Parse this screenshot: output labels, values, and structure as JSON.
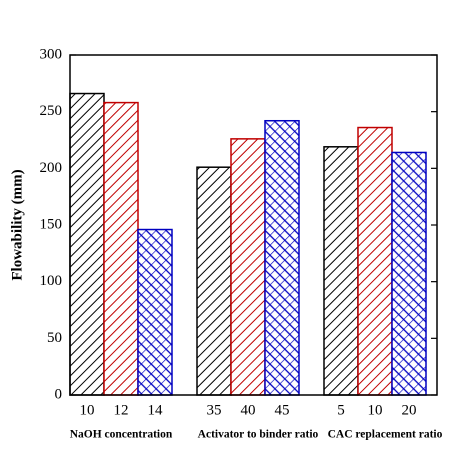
{
  "chart_data": {
    "type": "bar",
    "y_label": "Flowability (mm)",
    "groups": [
      {
        "label": "NaOH concentration",
        "categories": [
          "10",
          "12",
          "14"
        ],
        "values": [
          266,
          258,
          146
        ]
      },
      {
        "label": "Activator to binder ratio",
        "categories": [
          "35",
          "40",
          "45"
        ],
        "values": [
          201,
          226,
          242
        ]
      },
      {
        "label": "CAC replacement ratio",
        "categories": [
          "5",
          "10",
          "20"
        ],
        "values": [
          219,
          236,
          214
        ]
      }
    ],
    "colors": [
      "#000000",
      "#c00000",
      "#0000c0"
    ],
    "hatch": [
      "line",
      "line",
      "cross"
    ],
    "ylim": [
      0,
      300
    ],
    "yticks": [
      0,
      50,
      100,
      150,
      200,
      250,
      300
    ]
  }
}
